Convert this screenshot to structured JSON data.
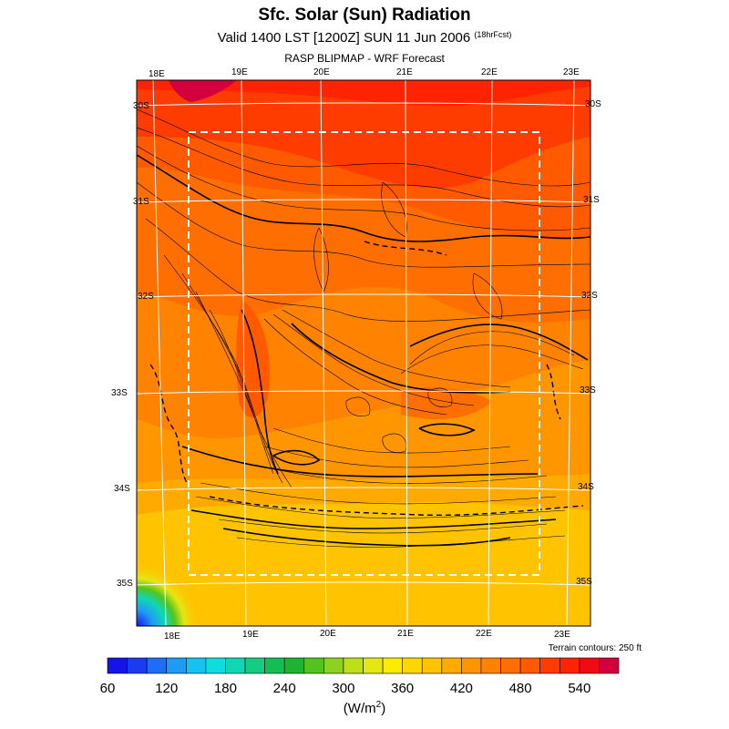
{
  "title": "Sfc. Solar (Sun) Radiation",
  "subtitle": {
    "main": "Valid 1400 LST [1200Z] SUN 11 Jun 2006",
    "suffix": "(18hrFcst)"
  },
  "source": "RASP BLIPMAP - WRF Forecast",
  "terrain_note": "Terrain contours: 250 ft",
  "map": {
    "lon_labels_top": [
      "18E",
      "19E",
      "20E",
      "21E",
      "22E",
      "23E"
    ],
    "lon_labels_bottom": [
      "18E",
      "19E",
      "20E",
      "21E",
      "22E",
      "23E"
    ],
    "lat_labels_left": [
      "30S",
      "31S",
      "32S",
      "33S",
      "34S",
      "35S"
    ],
    "lat_labels_right": [
      "30S",
      "31S",
      "32S",
      "33S",
      "34S",
      "35S"
    ]
  },
  "colorbar": {
    "colors": [
      "#1414e6",
      "#1a3cf0",
      "#1e6ef5",
      "#1e9bf5",
      "#14c3f0",
      "#0fdcdc",
      "#0fd7b4",
      "#14cd82",
      "#14be55",
      "#1eb432",
      "#55c31e",
      "#8cd21e",
      "#bede19",
      "#e6e614",
      "#ffeb00",
      "#ffd700",
      "#ffc300",
      "#ffaa00",
      "#ff9600",
      "#ff8200",
      "#ff6e00",
      "#ff5a00",
      "#ff3c00",
      "#ff2300",
      "#f00a14",
      "#d2003c"
    ],
    "tick_labels": [
      "60",
      "120",
      "180",
      "240",
      "300",
      "360",
      "420",
      "480",
      "540"
    ],
    "units": "(W/m",
    "units_sup": "2",
    "units_close": ")"
  }
}
